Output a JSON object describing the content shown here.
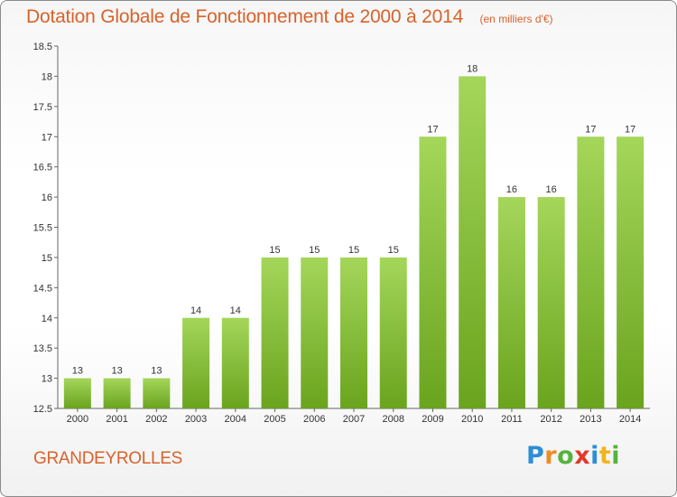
{
  "header": {
    "title": "Dotation Globale de Fonctionnement de 2000 à 2014",
    "subtitle": "(en milliers d'€)"
  },
  "footer": {
    "commune": "GRANDEYROLLES",
    "brand": [
      "P",
      "r",
      "o",
      "x",
      "i",
      "t",
      "i"
    ]
  },
  "colors": {
    "title": "#d9622b",
    "bar_light": "#a4d65a",
    "bar_dark": "#6aa41e"
  },
  "chart_data": {
    "type": "bar",
    "title": "Dotation Globale de Fonctionnement de 2000 à 2014",
    "subtitle": "(en milliers d'€)",
    "xlabel": "",
    "ylabel": "",
    "categories": [
      "2000",
      "2001",
      "2002",
      "2003",
      "2004",
      "2005",
      "2006",
      "2007",
      "2008",
      "2009",
      "2010",
      "2011",
      "2012",
      "2013",
      "2014"
    ],
    "values": [
      13,
      13,
      13,
      14,
      14,
      15,
      15,
      15,
      15,
      17,
      18,
      16,
      16,
      17,
      17
    ],
    "ylim": [
      12.5,
      18.5
    ],
    "yticks": [
      "12.5",
      "13",
      "13.5",
      "14",
      "14.5",
      "15",
      "15.5",
      "16",
      "16.5",
      "17",
      "17.5",
      "18",
      "18.5"
    ],
    "grid": false,
    "legend": "none"
  }
}
